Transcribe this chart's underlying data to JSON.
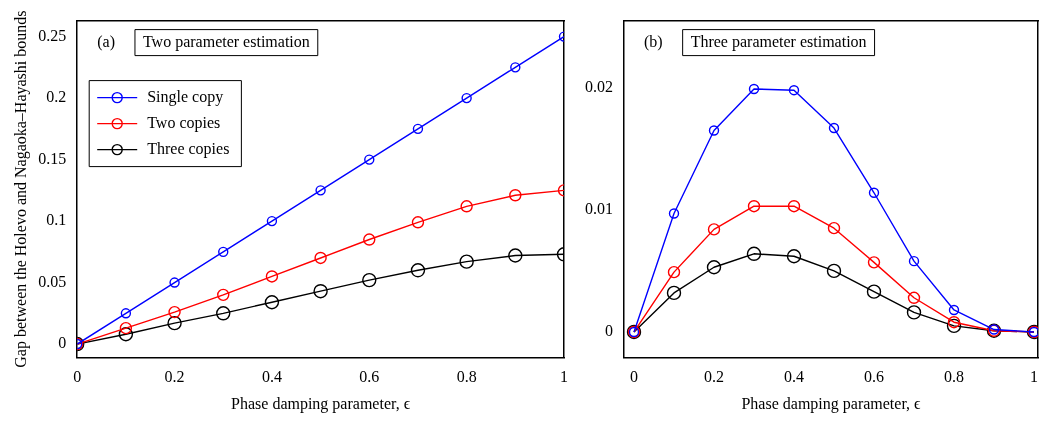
{
  "chart_data": [
    {
      "type": "line",
      "title": "Two parameter estimation",
      "annotations": [
        "(a)"
      ],
      "xlabel": "Phase damping parameter, ϵ",
      "ylabel": "Gap between the Holevo and Nagaoka–Hayashi bounds",
      "x": [
        0,
        0.1,
        0.2,
        0.3,
        0.4,
        0.5,
        0.6,
        0.7,
        0.8,
        0.9,
        1
      ],
      "series": [
        {
          "name": "Single copy",
          "color": "#0000ff",
          "values": [
            0,
            0.025,
            0.05,
            0.075,
            0.1,
            0.125,
            0.15,
            0.175,
            0.2,
            0.225,
            0.25
          ]
        },
        {
          "name": "Two copies",
          "color": "#ff0000",
          "values": [
            0,
            0.013,
            0.026,
            0.04,
            0.055,
            0.07,
            0.085,
            0.099,
            0.112,
            0.121,
            0.125
          ]
        },
        {
          "name": "Three copies",
          "color": "#000000",
          "values": [
            0,
            0.008,
            0.017,
            0.025,
            0.034,
            0.043,
            0.052,
            0.06,
            0.067,
            0.072,
            0.073
          ]
        }
      ],
      "xlim": [
        0,
        1
      ],
      "xticks": [
        0,
        0.2,
        0.4,
        0.6,
        0.8,
        1
      ],
      "ylim": [
        -0.011,
        0.263
      ],
      "yticks": [
        0,
        0.05,
        0.1,
        0.15,
        0.2,
        0.25
      ],
      "grid": false,
      "legend": "top left",
      "marker": "circle",
      "line_style": "solid"
    },
    {
      "type": "line",
      "title": "Three parameter estimation",
      "annotations": [
        "(b)"
      ],
      "xlabel": "Phase damping parameter, ϵ",
      "x": [
        0,
        0.1,
        0.2,
        0.3,
        0.4,
        0.5,
        0.6,
        0.7,
        0.8,
        0.9,
        1
      ],
      "series": [
        {
          "color": "#0000ff",
          "values": [
            0,
            0.0097,
            0.0165,
            0.0199,
            0.0198,
            0.0167,
            0.0114,
            0.0058,
            0.0018,
            0.0002,
            0
          ]
        },
        {
          "color": "#ff0000",
          "values": [
            0,
            0.0049,
            0.0084,
            0.0103,
            0.0103,
            0.0085,
            0.0057,
            0.0028,
            0.0008,
            0.0001,
            0
          ]
        },
        {
          "color": "#000000",
          "values": [
            0,
            0.0032,
            0.0053,
            0.0064,
            0.0062,
            0.005,
            0.0033,
            0.0016,
            0.0005,
            0.0001,
            0
          ]
        }
      ],
      "xlim": [
        -0.025,
        1.01
      ],
      "xticks": [
        0,
        0.2,
        0.4,
        0.6,
        0.8,
        1
      ],
      "ylim": [
        -0.0021,
        0.0255
      ],
      "yticks": [
        0,
        0.01,
        0.02
      ],
      "grid": false,
      "legend": false,
      "marker": "circle",
      "line_style": "solid"
    }
  ]
}
